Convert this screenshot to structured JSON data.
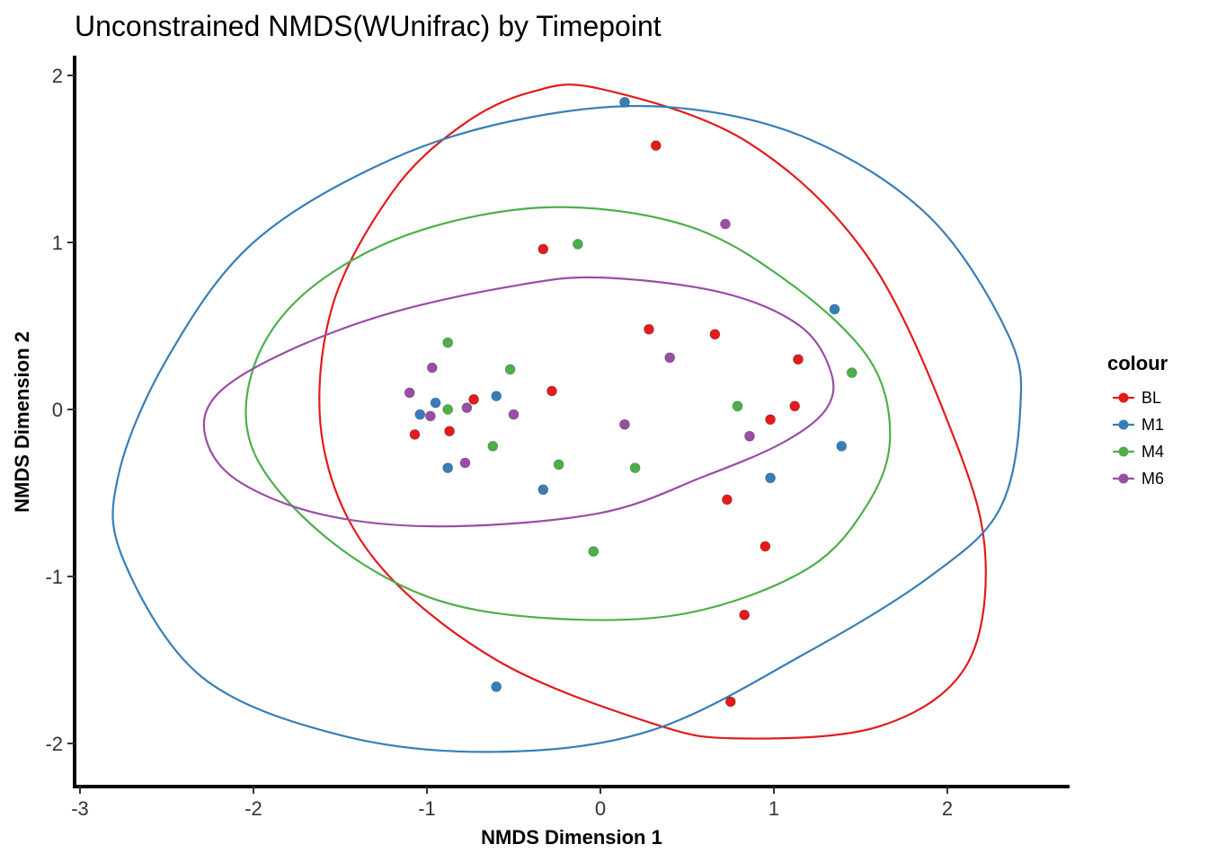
{
  "chart_data": {
    "type": "scatter",
    "title": "Unconstrained NMDS(WUnifrac) by Timepoint",
    "xlabel": "NMDS Dimension 1",
    "ylabel": "NMDS Dimension 2",
    "xlim": [
      -3.0,
      2.7
    ],
    "ylim": [
      -2.25,
      2.1
    ],
    "xticks": [
      -3,
      -2,
      -1,
      0,
      1,
      2
    ],
    "yticks": [
      -2,
      -1,
      0,
      1,
      2
    ],
    "grid": false,
    "legend": {
      "title": "colour",
      "position": "right"
    },
    "series": [
      {
        "name": "BL",
        "color": "#E41A1C",
        "points": [
          [
            0.32,
            1.58
          ],
          [
            -0.33,
            0.96
          ],
          [
            0.28,
            0.48
          ],
          [
            0.66,
            0.45
          ],
          [
            1.14,
            0.3
          ],
          [
            -0.28,
            0.11
          ],
          [
            -0.73,
            0.06
          ],
          [
            1.12,
            0.02
          ],
          [
            0.98,
            -0.06
          ],
          [
            -1.07,
            -0.15
          ],
          [
            -0.87,
            -0.13
          ],
          [
            0.73,
            -0.54
          ],
          [
            0.95,
            -0.82
          ],
          [
            0.83,
            -1.23
          ],
          [
            0.75,
            -1.75
          ]
        ],
        "ellipse": [
          [
            0.0,
            1.92
          ],
          [
            0.85,
            1.6
          ],
          [
            1.55,
            0.9
          ],
          [
            2.05,
            -0.2
          ],
          [
            2.22,
            -0.9
          ],
          [
            2.1,
            -1.55
          ],
          [
            1.6,
            -1.9
          ],
          [
            0.8,
            -1.97
          ],
          [
            0.3,
            -1.88
          ],
          [
            -0.6,
            -1.5
          ],
          [
            -1.3,
            -0.9
          ],
          [
            -1.6,
            -0.2
          ],
          [
            -1.55,
            0.6
          ],
          [
            -1.2,
            1.3
          ],
          [
            -0.8,
            1.7
          ],
          [
            -0.4,
            1.9
          ]
        ]
      },
      {
        "name": "M1",
        "color": "#377EB8",
        "points": [
          [
            0.14,
            1.84
          ],
          [
            1.35,
            0.6
          ],
          [
            -0.95,
            0.04
          ],
          [
            -1.04,
            -0.03
          ],
          [
            -0.6,
            0.08
          ],
          [
            1.39,
            -0.22
          ],
          [
            -0.88,
            -0.35
          ],
          [
            -0.33,
            -0.48
          ],
          [
            0.98,
            -0.41
          ],
          [
            -0.6,
            -1.66
          ]
        ],
        "ellipse": [
          [
            0.4,
            1.81
          ],
          [
            1.2,
            1.62
          ],
          [
            1.9,
            1.15
          ],
          [
            2.35,
            0.45
          ],
          [
            2.42,
            0.0
          ],
          [
            2.3,
            -0.6
          ],
          [
            1.9,
            -1.0
          ],
          [
            1.2,
            -1.45
          ],
          [
            0.3,
            -1.92
          ],
          [
            -0.6,
            -2.05
          ],
          [
            -1.5,
            -1.95
          ],
          [
            -2.3,
            -1.6
          ],
          [
            -2.75,
            -0.9
          ],
          [
            -2.78,
            -0.4
          ],
          [
            -2.5,
            0.3
          ],
          [
            -2.0,
            1.0
          ],
          [
            -1.2,
            1.5
          ],
          [
            -0.4,
            1.75
          ]
        ]
      },
      {
        "name": "M4",
        "color": "#4DAF4A",
        "points": [
          [
            -0.13,
            0.99
          ],
          [
            -0.88,
            0.4
          ],
          [
            -0.52,
            0.24
          ],
          [
            1.45,
            0.22
          ],
          [
            -0.88,
            0.0
          ],
          [
            0.79,
            0.02
          ],
          [
            -0.62,
            -0.22
          ],
          [
            -0.24,
            -0.33
          ],
          [
            0.2,
            -0.35
          ],
          [
            -0.04,
            -0.85
          ]
        ],
        "ellipse": [
          [
            -0.3,
            1.21
          ],
          [
            0.5,
            1.1
          ],
          [
            1.1,
            0.75
          ],
          [
            1.55,
            0.3
          ],
          [
            1.67,
            -0.15
          ],
          [
            1.55,
            -0.55
          ],
          [
            1.2,
            -0.95
          ],
          [
            0.5,
            -1.22
          ],
          [
            -0.3,
            -1.25
          ],
          [
            -1.0,
            -1.12
          ],
          [
            -1.6,
            -0.75
          ],
          [
            -2.0,
            -0.25
          ],
          [
            -2.0,
            0.25
          ],
          [
            -1.7,
            0.7
          ],
          [
            -1.1,
            1.05
          ]
        ]
      },
      {
        "name": "M6",
        "color": "#984EA3",
        "points": [
          [
            0.72,
            1.11
          ],
          [
            0.4,
            0.31
          ],
          [
            -0.97,
            0.25
          ],
          [
            -1.1,
            0.1
          ],
          [
            -0.98,
            -0.04
          ],
          [
            -0.77,
            0.01
          ],
          [
            -0.5,
            -0.03
          ],
          [
            0.14,
            -0.09
          ],
          [
            0.86,
            -0.16
          ],
          [
            -0.78,
            -0.32
          ]
        ],
        "ellipse": [
          [
            0.0,
            0.79
          ],
          [
            0.7,
            0.7
          ],
          [
            1.15,
            0.5
          ],
          [
            1.33,
            0.22
          ],
          [
            1.3,
            0.0
          ],
          [
            1.05,
            -0.2
          ],
          [
            0.6,
            -0.4
          ],
          [
            0.0,
            -0.62
          ],
          [
            -0.9,
            -0.7
          ],
          [
            -1.6,
            -0.63
          ],
          [
            -2.1,
            -0.42
          ],
          [
            -2.28,
            -0.15
          ],
          [
            -2.2,
            0.1
          ],
          [
            -1.8,
            0.35
          ],
          [
            -1.2,
            0.58
          ],
          [
            -0.5,
            0.74
          ]
        ]
      }
    ]
  }
}
